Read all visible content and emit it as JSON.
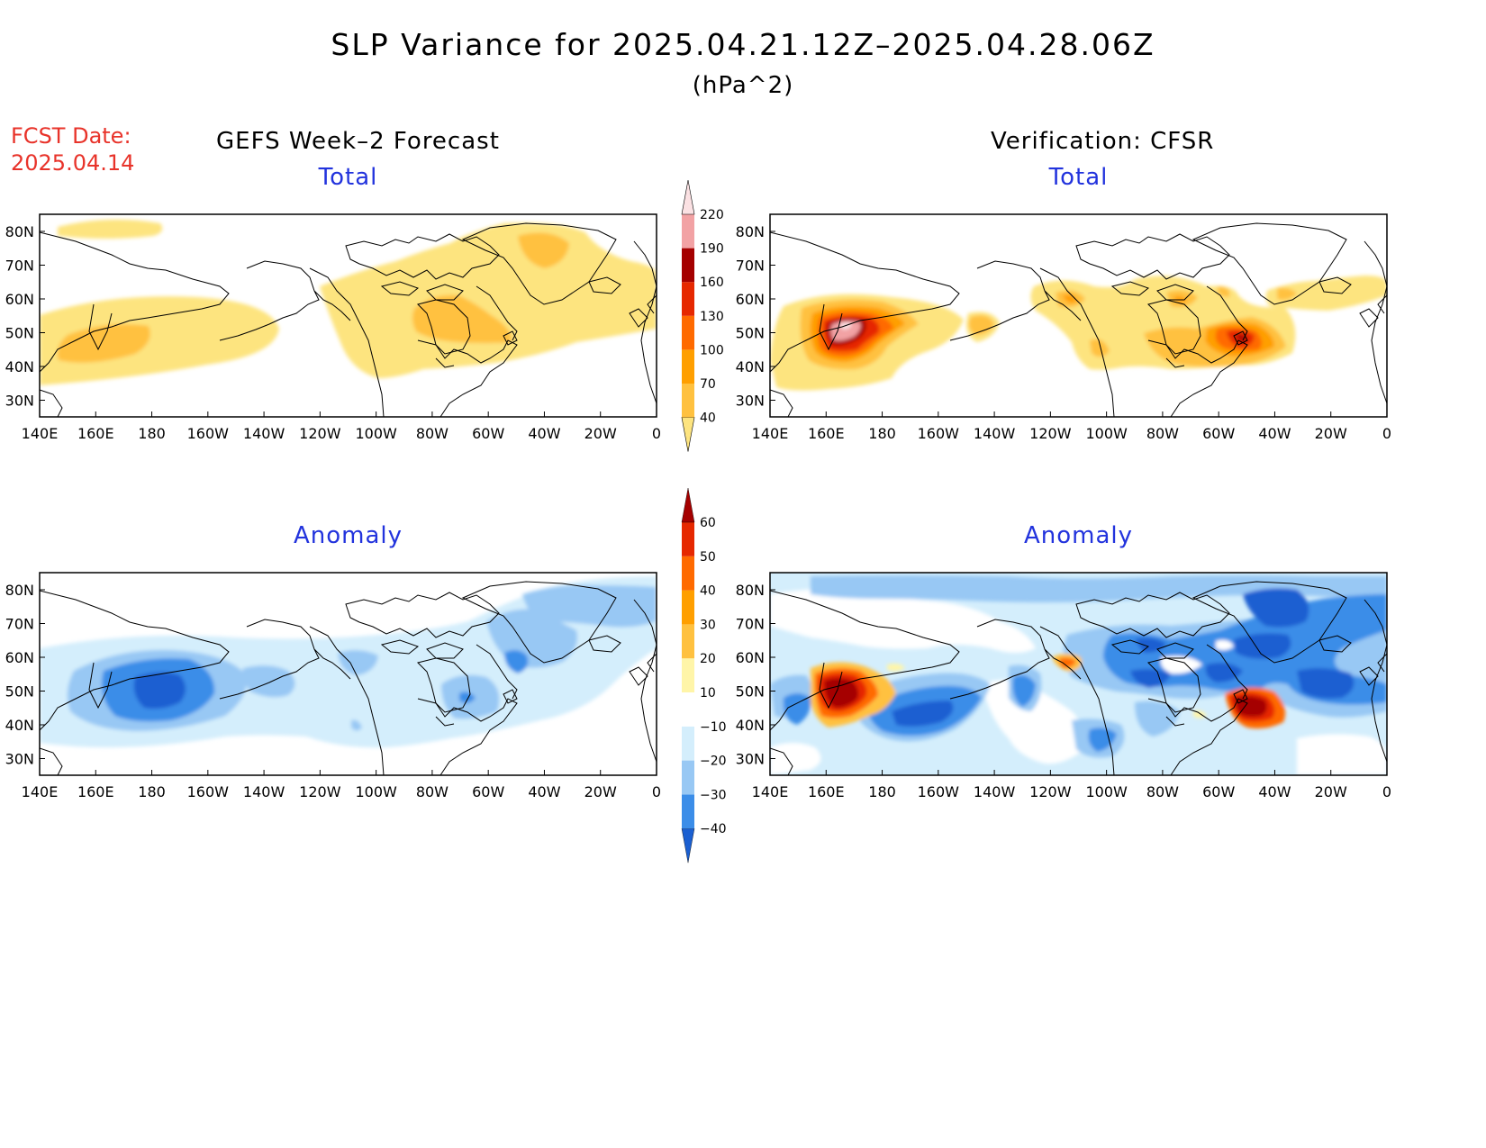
{
  "title": "SLP Variance for 2025.04.21.12Z–2025.04.28.06Z",
  "units": "(hPa^2)",
  "fcst_date": {
    "line1": "FCST Date:",
    "line2": "2025.04.14"
  },
  "left_header": "GEFS Week–2 Forecast",
  "right_header": "Verification: CFSR",
  "panels": {
    "gefs_total": {
      "title": "Total"
    },
    "cfsr_total": {
      "title": "Total"
    },
    "gefs_anomaly": {
      "title": "Anomaly"
    },
    "cfsr_anomaly": {
      "title": "Anomaly"
    }
  },
  "lon_labels": [
    "140E",
    "160E",
    "180",
    "160W",
    "140W",
    "120W",
    "100W",
    "80W",
    "60W",
    "40W",
    "20W",
    "0"
  ],
  "lat_labels": [
    "80N",
    "70N",
    "60N",
    "50N",
    "40N",
    "30N"
  ],
  "colorbar_total": {
    "levels": [
      "40",
      "70",
      "100",
      "130",
      "160",
      "190",
      "220"
    ],
    "colors": [
      "#fde47f",
      "#ffc13f",
      "#ff9f00",
      "#ff6a00",
      "#e62800",
      "#a50000",
      "#f2a2a4",
      "#fbe1e3"
    ]
  },
  "colorbar_anomaly": {
    "levels": [
      "−40",
      "−30",
      "−20",
      "−10",
      "10",
      "20",
      "30",
      "40",
      "50",
      "60"
    ],
    "colors": [
      "#1a5fd1",
      "#3b8de8",
      "#98c8f4",
      "#d4eefc",
      "#ffffff",
      "#fff5a8",
      "#ffc13f",
      "#ff9f00",
      "#ff6a00",
      "#e62800",
      "#a50000"
    ]
  }
}
